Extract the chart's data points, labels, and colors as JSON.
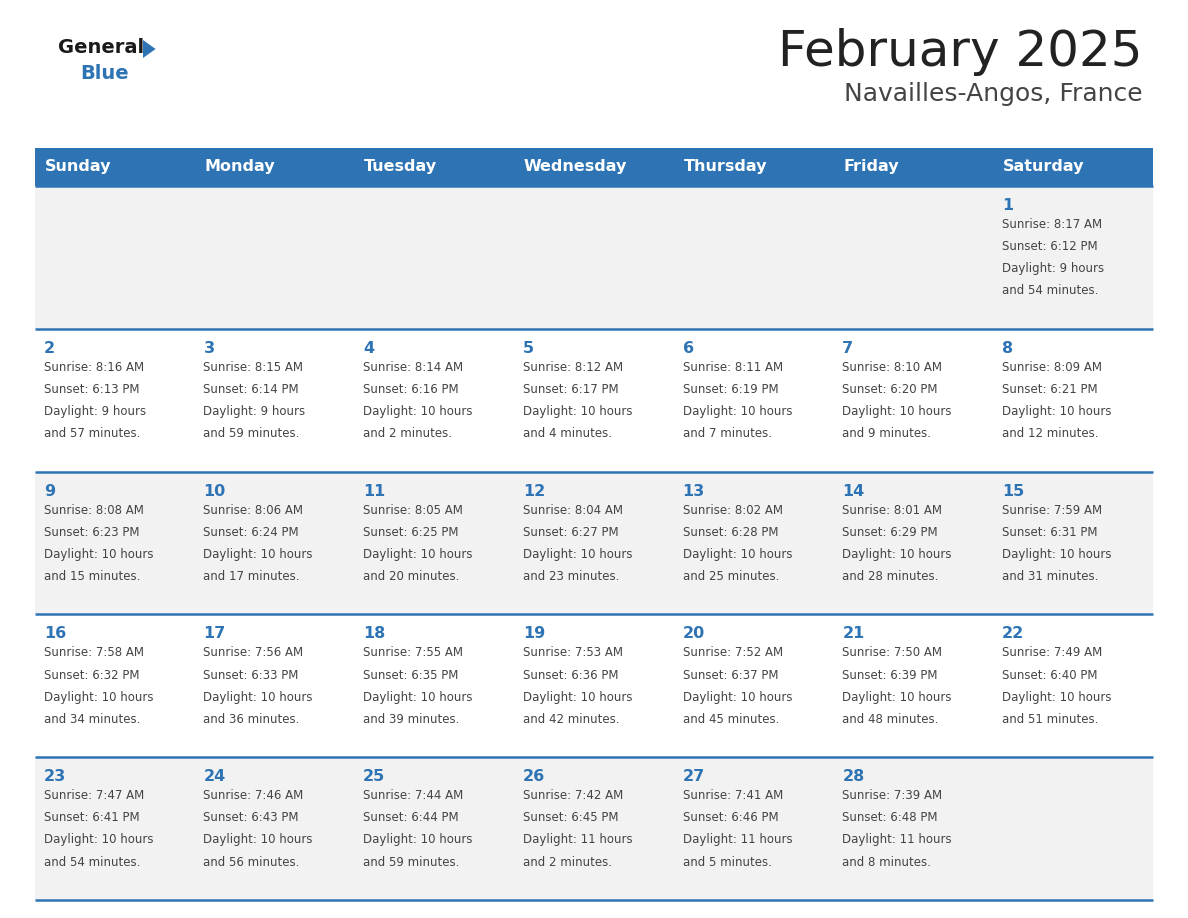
{
  "title": "February 2025",
  "subtitle": "Navailles-Angos, France",
  "days_of_week": [
    "Sunday",
    "Monday",
    "Tuesday",
    "Wednesday",
    "Thursday",
    "Friday",
    "Saturday"
  ],
  "header_bg": "#2E74B5",
  "header_text": "#FFFFFF",
  "row_bg_light": "#F2F2F2",
  "row_bg_white": "#FFFFFF",
  "cell_text_color": "#444444",
  "day_num_color": "#2E74B5",
  "separator_color": "#2E74B5",
  "title_color": "#222222",
  "subtitle_color": "#444444",
  "logo_general_color": "#1A1A1A",
  "logo_blue_color": "#2E74B5",
  "calendar": [
    [
      {
        "day": null,
        "sunrise": null,
        "sunset": null,
        "daylight": null
      },
      {
        "day": null,
        "sunrise": null,
        "sunset": null,
        "daylight": null
      },
      {
        "day": null,
        "sunrise": null,
        "sunset": null,
        "daylight": null
      },
      {
        "day": null,
        "sunrise": null,
        "sunset": null,
        "daylight": null
      },
      {
        "day": null,
        "sunrise": null,
        "sunset": null,
        "daylight": null
      },
      {
        "day": null,
        "sunrise": null,
        "sunset": null,
        "daylight": null
      },
      {
        "day": 1,
        "sunrise": "8:17 AM",
        "sunset": "6:12 PM",
        "daylight": "9 hours\nand 54 minutes."
      }
    ],
    [
      {
        "day": 2,
        "sunrise": "8:16 AM",
        "sunset": "6:13 PM",
        "daylight": "9 hours\nand 57 minutes."
      },
      {
        "day": 3,
        "sunrise": "8:15 AM",
        "sunset": "6:14 PM",
        "daylight": "9 hours\nand 59 minutes."
      },
      {
        "day": 4,
        "sunrise": "8:14 AM",
        "sunset": "6:16 PM",
        "daylight": "10 hours\nand 2 minutes."
      },
      {
        "day": 5,
        "sunrise": "8:12 AM",
        "sunset": "6:17 PM",
        "daylight": "10 hours\nand 4 minutes."
      },
      {
        "day": 6,
        "sunrise": "8:11 AM",
        "sunset": "6:19 PM",
        "daylight": "10 hours\nand 7 minutes."
      },
      {
        "day": 7,
        "sunrise": "8:10 AM",
        "sunset": "6:20 PM",
        "daylight": "10 hours\nand 9 minutes."
      },
      {
        "day": 8,
        "sunrise": "8:09 AM",
        "sunset": "6:21 PM",
        "daylight": "10 hours\nand 12 minutes."
      }
    ],
    [
      {
        "day": 9,
        "sunrise": "8:08 AM",
        "sunset": "6:23 PM",
        "daylight": "10 hours\nand 15 minutes."
      },
      {
        "day": 10,
        "sunrise": "8:06 AM",
        "sunset": "6:24 PM",
        "daylight": "10 hours\nand 17 minutes."
      },
      {
        "day": 11,
        "sunrise": "8:05 AM",
        "sunset": "6:25 PM",
        "daylight": "10 hours\nand 20 minutes."
      },
      {
        "day": 12,
        "sunrise": "8:04 AM",
        "sunset": "6:27 PM",
        "daylight": "10 hours\nand 23 minutes."
      },
      {
        "day": 13,
        "sunrise": "8:02 AM",
        "sunset": "6:28 PM",
        "daylight": "10 hours\nand 25 minutes."
      },
      {
        "day": 14,
        "sunrise": "8:01 AM",
        "sunset": "6:29 PM",
        "daylight": "10 hours\nand 28 minutes."
      },
      {
        "day": 15,
        "sunrise": "7:59 AM",
        "sunset": "6:31 PM",
        "daylight": "10 hours\nand 31 minutes."
      }
    ],
    [
      {
        "day": 16,
        "sunrise": "7:58 AM",
        "sunset": "6:32 PM",
        "daylight": "10 hours\nand 34 minutes."
      },
      {
        "day": 17,
        "sunrise": "7:56 AM",
        "sunset": "6:33 PM",
        "daylight": "10 hours\nand 36 minutes."
      },
      {
        "day": 18,
        "sunrise": "7:55 AM",
        "sunset": "6:35 PM",
        "daylight": "10 hours\nand 39 minutes."
      },
      {
        "day": 19,
        "sunrise": "7:53 AM",
        "sunset": "6:36 PM",
        "daylight": "10 hours\nand 42 minutes."
      },
      {
        "day": 20,
        "sunrise": "7:52 AM",
        "sunset": "6:37 PM",
        "daylight": "10 hours\nand 45 minutes."
      },
      {
        "day": 21,
        "sunrise": "7:50 AM",
        "sunset": "6:39 PM",
        "daylight": "10 hours\nand 48 minutes."
      },
      {
        "day": 22,
        "sunrise": "7:49 AM",
        "sunset": "6:40 PM",
        "daylight": "10 hours\nand 51 minutes."
      }
    ],
    [
      {
        "day": 23,
        "sunrise": "7:47 AM",
        "sunset": "6:41 PM",
        "daylight": "10 hours\nand 54 minutes."
      },
      {
        "day": 24,
        "sunrise": "7:46 AM",
        "sunset": "6:43 PM",
        "daylight": "10 hours\nand 56 minutes."
      },
      {
        "day": 25,
        "sunrise": "7:44 AM",
        "sunset": "6:44 PM",
        "daylight": "10 hours\nand 59 minutes."
      },
      {
        "day": 26,
        "sunrise": "7:42 AM",
        "sunset": "6:45 PM",
        "daylight": "11 hours\nand 2 minutes."
      },
      {
        "day": 27,
        "sunrise": "7:41 AM",
        "sunset": "6:46 PM",
        "daylight": "11 hours\nand 5 minutes."
      },
      {
        "day": 28,
        "sunrise": "7:39 AM",
        "sunset": "6:48 PM",
        "daylight": "11 hours\nand 8 minutes."
      },
      {
        "day": null,
        "sunrise": null,
        "sunset": null,
        "daylight": null
      }
    ]
  ]
}
